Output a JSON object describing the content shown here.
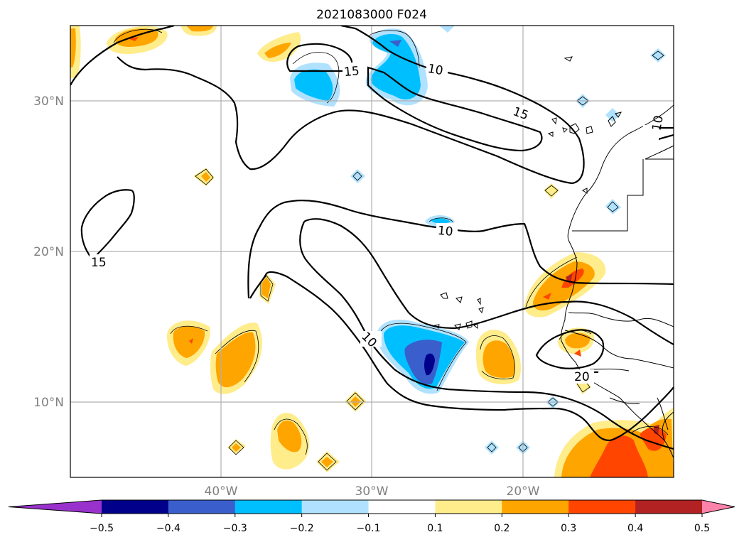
{
  "title": "2021083000 F024",
  "lat_labels": [
    "30°N",
    "20°N",
    "10°N"
  ],
  "lon_labels": [
    "40°W",
    "30°W",
    "20°W"
  ],
  "contour_labels": [
    "15",
    "10",
    "15",
    "10",
    "10",
    "15",
    "10",
    "20"
  ],
  "colorbar": {
    "ticks": [
      "−0.5",
      "−0.4",
      "−0.3",
      "−0.2",
      "−0.1",
      "0.1",
      "0.2",
      "0.3",
      "0.4",
      "0.5"
    ],
    "colors": [
      "#9932cc",
      "#00008b",
      "#3a5fcd",
      "#00bfff",
      "#b0e2ff",
      "#ffffff",
      "#ffec8b",
      "#ffa500",
      "#ff4500",
      "#b22222",
      "#ff82ab"
    ]
  },
  "colors": {
    "orange": "#ffa500",
    "light_yellow": "#ffec8b",
    "red_orange": "#ff4500",
    "dark_red": "#b22222",
    "deep_sky_blue": "#00bfff",
    "light_sky_blue": "#b0e2ff",
    "royal_blue": "#3a5fcd",
    "dark_blue": "#00008b"
  }
}
